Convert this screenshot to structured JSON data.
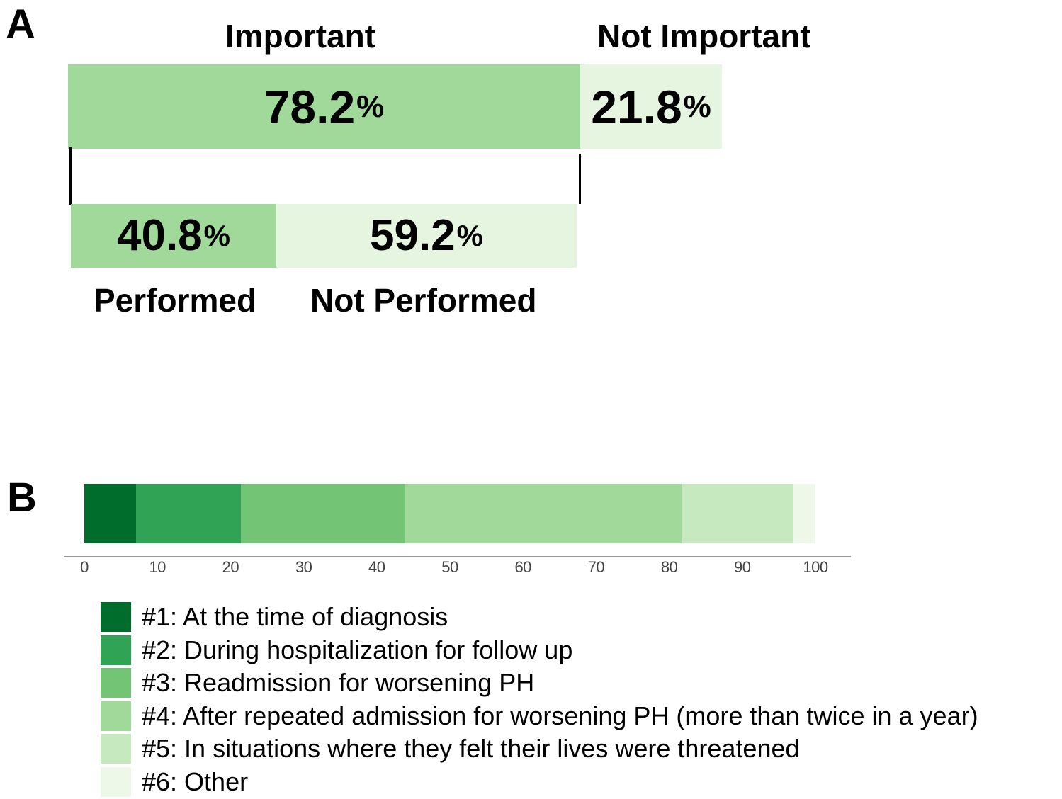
{
  "panel_a": {
    "letter": "A",
    "important_label": "Important",
    "not_important_label": "Not Important",
    "important_value": "78.2",
    "not_important_value": "21.8",
    "performed_value": "40.8",
    "not_performed_value": "59.2",
    "pct": "%",
    "performed_label": "Performed",
    "not_performed_label": "Not Performed"
  },
  "panel_b": {
    "letter": "B"
  },
  "colors": [
    "#006d2c",
    "#31a354",
    "#74c476",
    "#a1d99b",
    "#c7e9c0",
    "#edf8e9"
  ],
  "chart_data": [
    {
      "type": "bar",
      "stacked": true,
      "orientation": "horizontal",
      "rows": [
        {
          "segments": [
            {
              "name": "Important",
              "value": 78.2
            },
            {
              "name": "Not Important",
              "value": 21.8
            }
          ]
        },
        {
          "segments": [
            {
              "name": "Performed",
              "value": 40.8
            },
            {
              "name": "Not Performed",
              "value": 59.2
            }
          ]
        }
      ],
      "colors": [
        "#a1d99b",
        "#e5f5e0"
      ]
    },
    {
      "type": "bar",
      "stacked": true,
      "orientation": "horizontal",
      "xlim": [
        0,
        100
      ],
      "ticks": [
        "0",
        "10",
        "20",
        "30",
        "40",
        "50",
        "60",
        "70",
        "80",
        "90",
        "100"
      ],
      "series": [
        {
          "name": "#1: At the time of diagnosis",
          "value": 7.1
        },
        {
          "name": "#2: During hospitalization for follow up",
          "value": 14.3
        },
        {
          "name": "#3: Readmission for worsening PH",
          "value": 22.5
        },
        {
          "name": "#4: After repeated admission for worsening PH (more than twice in a year)",
          "value": 37.8
        },
        {
          "name": "#5: In situations where they felt their lives were threatened",
          "value": 15.3
        },
        {
          "name": "#6: Other",
          "value": 3.0
        }
      ],
      "legend": "bottom-left"
    }
  ]
}
